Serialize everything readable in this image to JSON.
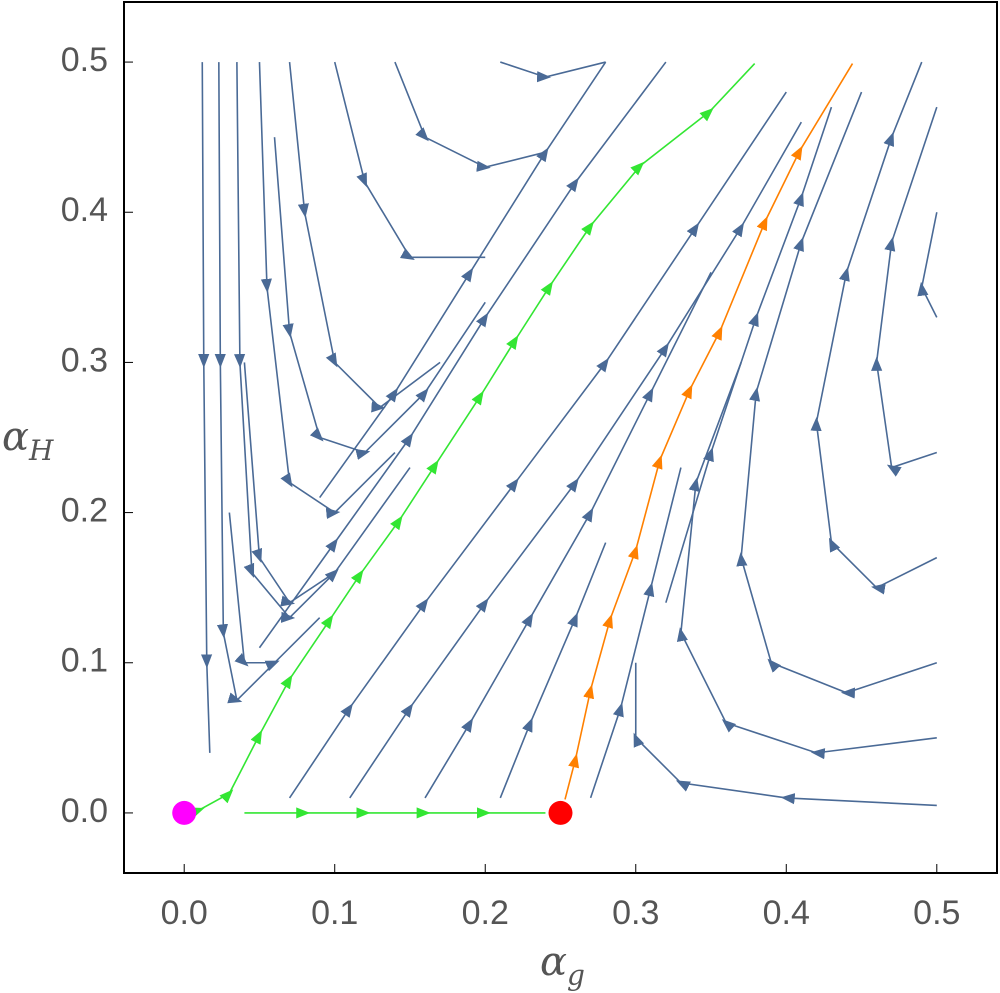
{
  "chart_data": {
    "type": "streamplot",
    "xlabel": "α",
    "xlabel_sub": "g",
    "ylabel": "α",
    "ylabel_sub": "H",
    "xlim": [
      -0.04,
      0.54
    ],
    "ylim": [
      -0.04,
      0.54
    ],
    "xticks": [
      {
        "value": 0,
        "label": "0.0"
      },
      0.1,
      0.2,
      0.3,
      0.4,
      0.5
    ],
    "yticks": [
      {
        "value": 0,
        "label": "0.0"
      },
      0.1,
      0.2,
      0.3,
      0.4,
      0.5
    ],
    "series": [
      {
        "color": "#33e633",
        "x": [
          0,
          0.01,
          0.03,
          0.05,
          0.07,
          0.097,
          0.117,
          0.143,
          0.167,
          0.197,
          0.22,
          0.243,
          0.27,
          0.303,
          0.349,
          0.379
        ],
        "y": [
          0,
          0.002,
          0.013,
          0.052,
          0.089,
          0.129,
          0.159,
          0.195,
          0.232,
          0.278,
          0.315,
          0.351,
          0.391,
          0.431,
          0.467,
          0.499
        ]
      },
      {
        "color": "#33e633",
        "x": [
          0.04,
          0.08,
          0.12,
          0.16,
          0.2,
          0.24
        ],
        "y": [
          0,
          0,
          0,
          0,
          0,
          0
        ]
      },
      {
        "color": "#ff8000",
        "x": [
          0.253,
          0.26,
          0.27,
          0.283,
          0.3,
          0.316,
          0.336,
          0.356,
          0.386,
          0.409,
          0.444
        ],
        "y": [
          0.009,
          0.036,
          0.082,
          0.129,
          0.175,
          0.235,
          0.282,
          0.321,
          0.394,
          0.441,
          0.499
        ]
      },
      {
        "color": "#4a6a96",
        "x": [
          0.012,
          0.013,
          0.015,
          0.017
        ],
        "y": [
          0.5,
          0.3,
          0.1,
          0.04
        ]
      },
      {
        "color": "#4a6a96",
        "x": [
          0.023,
          0.024,
          0.026,
          0.035,
          0.06
        ],
        "y": [
          0.5,
          0.3,
          0.12,
          0.075,
          0.1
        ]
      },
      {
        "color": "#4a6a96",
        "x": [
          0.035,
          0.037,
          0.045,
          0.07,
          0.1
        ],
        "y": [
          0.5,
          0.3,
          0.16,
          0.13,
          0.16
        ]
      },
      {
        "color": "#4a6a96",
        "x": [
          0.05,
          0.055,
          0.07,
          0.1,
          0.14
        ],
        "y": [
          0.5,
          0.35,
          0.22,
          0.2,
          0.24
        ]
      },
      {
        "color": "#4a6a96",
        "x": [
          0.07,
          0.08,
          0.1,
          0.13,
          0.17
        ],
        "y": [
          0.5,
          0.4,
          0.3,
          0.27,
          0.3
        ]
      },
      {
        "color": "#4a6a96",
        "x": [
          0.1,
          0.12,
          0.15,
          0.2
        ],
        "y": [
          0.5,
          0.42,
          0.37,
          0.37
        ]
      },
      {
        "color": "#4a6a96",
        "x": [
          0.14,
          0.16,
          0.2,
          0.24
        ],
        "y": [
          0.5,
          0.45,
          0.43,
          0.44
        ]
      },
      {
        "color": "#4a6a96",
        "x": [
          0.21,
          0.24,
          0.28
        ],
        "y": [
          0.5,
          0.49,
          0.5
        ]
      },
      {
        "color": "#4a6a96",
        "x": [
          0.06,
          0.07,
          0.09,
          0.12,
          0.16,
          0.2
        ],
        "y": [
          0.45,
          0.32,
          0.25,
          0.24,
          0.28,
          0.34
        ]
      },
      {
        "color": "#4a6a96",
        "x": [
          0.04,
          0.05,
          0.07,
          0.1,
          0.15
        ],
        "y": [
          0.3,
          0.17,
          0.14,
          0.16,
          0.23
        ]
      },
      {
        "color": "#4a6a96",
        "x": [
          0.03,
          0.04,
          0.06,
          0.09
        ],
        "y": [
          0.2,
          0.1,
          0.1,
          0.13
        ]
      },
      {
        "color": "#4a6a96",
        "x": [
          0.07,
          0.11,
          0.16,
          0.22,
          0.28,
          0.34,
          0.4
        ],
        "y": [
          0.01,
          0.07,
          0.14,
          0.22,
          0.3,
          0.39,
          0.48
        ]
      },
      {
        "color": "#4a6a96",
        "x": [
          0.11,
          0.15,
          0.2,
          0.26,
          0.32,
          0.37,
          0.41
        ],
        "y": [
          0.01,
          0.07,
          0.14,
          0.22,
          0.31,
          0.39,
          0.46
        ]
      },
      {
        "color": "#4a6a96",
        "x": [
          0.16,
          0.19,
          0.23,
          0.27,
          0.31,
          0.35
        ],
        "y": [
          0.01,
          0.06,
          0.13,
          0.2,
          0.28,
          0.36
        ]
      },
      {
        "color": "#4a6a96",
        "x": [
          0.21,
          0.23,
          0.26,
          0.28
        ],
        "y": [
          0.01,
          0.06,
          0.13,
          0.18
        ]
      },
      {
        "color": "#4a6a96",
        "x": [
          0.05,
          0.1,
          0.15,
          0.2,
          0.26,
          0.32
        ],
        "y": [
          0.11,
          0.18,
          0.25,
          0.33,
          0.42,
          0.5
        ]
      },
      {
        "color": "#4a6a96",
        "x": [
          0.09,
          0.14,
          0.19,
          0.24,
          0.28
        ],
        "y": [
          0.21,
          0.28,
          0.36,
          0.44,
          0.5
        ]
      },
      {
        "color": "#4a6a96",
        "x": [
          0.5,
          0.4,
          0.33,
          0.3,
          0.3
        ],
        "y": [
          0.005,
          0.01,
          0.02,
          0.05,
          0.1
        ]
      },
      {
        "color": "#4a6a96",
        "x": [
          0.5,
          0.42,
          0.36,
          0.33,
          0.34,
          0.37
        ],
        "y": [
          0.05,
          0.04,
          0.06,
          0.12,
          0.22,
          0.3
        ]
      },
      {
        "color": "#4a6a96",
        "x": [
          0.5,
          0.44,
          0.39,
          0.37,
          0.38,
          0.41,
          0.45
        ],
        "y": [
          0.1,
          0.08,
          0.1,
          0.17,
          0.28,
          0.38,
          0.48
        ]
      },
      {
        "color": "#4a6a96",
        "x": [
          0.5,
          0.46,
          0.43,
          0.42,
          0.44,
          0.47,
          0.49
        ],
        "y": [
          0.17,
          0.15,
          0.18,
          0.26,
          0.36,
          0.45,
          0.5
        ]
      },
      {
        "color": "#4a6a96",
        "x": [
          0.5,
          0.47,
          0.46,
          0.47,
          0.5
        ],
        "y": [
          0.24,
          0.23,
          0.3,
          0.38,
          0.47
        ]
      },
      {
        "color": "#4a6a96",
        "x": [
          0.5,
          0.49,
          0.5
        ],
        "y": [
          0.33,
          0.35,
          0.4
        ]
      },
      {
        "color": "#4a6a96",
        "x": [
          0.27,
          0.29,
          0.31,
          0.33
        ],
        "y": [
          0.01,
          0.07,
          0.15,
          0.23
        ]
      },
      {
        "color": "#4a6a96",
        "x": [
          0.32,
          0.35,
          0.38,
          0.41,
          0.43
        ],
        "y": [
          0.14,
          0.24,
          0.33,
          0.41,
          0.47
        ]
      }
    ],
    "points": [
      {
        "x": 0,
        "y": 0,
        "color": "#ff00ff"
      },
      {
        "x": 0.25,
        "y": 0,
        "color": "#ff0000"
      }
    ]
  }
}
